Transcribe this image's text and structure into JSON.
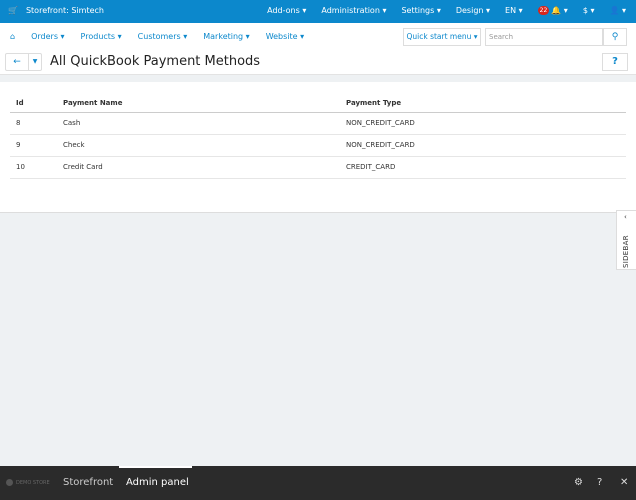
{
  "topbar": {
    "store": "Storefront: Simtech",
    "menu": [
      "Add-ons ▾",
      "Administration ▾",
      "Settings ▾",
      "Design ▾",
      "EN ▾",
      "🔔 ▾",
      "$ ▾",
      "👤 ▾"
    ],
    "notifications": "22"
  },
  "nav": {
    "items": [
      "Orders ▾",
      "Products ▾",
      "Customers ▾",
      "Marketing ▾",
      "Website ▾"
    ],
    "quick_start": "Quick start menu ▾",
    "search_placeholder": "Search"
  },
  "page": {
    "title": "All QuickBook Payment Methods"
  },
  "table": {
    "headers": [
      "Id",
      "Payment Name",
      "Payment Type"
    ],
    "rows": [
      [
        "8",
        "Cash",
        "NON_CREDIT_CARD"
      ],
      [
        "9",
        "Check",
        "NON_CREDIT_CARD"
      ],
      [
        "10",
        "Credit Card",
        "CREDIT_CARD"
      ]
    ]
  },
  "sidebar": {
    "label": "SIDEBAR"
  },
  "bottom": {
    "logo": "DEMO STORE",
    "storefront": "Storefront",
    "admin": "Admin panel"
  }
}
